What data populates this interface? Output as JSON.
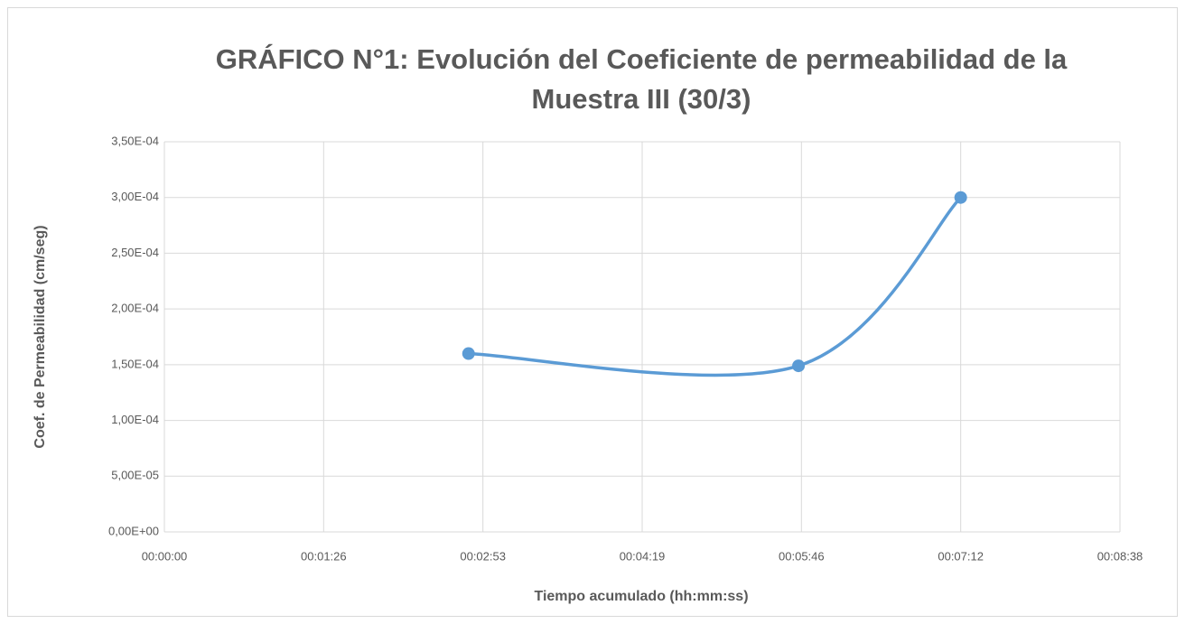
{
  "chart_data": {
    "type": "scatter",
    "title": [
      "GRÁFICO N°1: Evolución del Coeficiente de permeabilidad de la",
      "Muestra III (30/3)"
    ],
    "xlabel": "Tiempo acumulado (hh:mm:ss)",
    "ylabel": "Coef. de Permeabilidad (cm/seg)",
    "smooth": true,
    "grid": true,
    "series": [
      {
        "color": "#5b9bd5",
        "x": [
          165,
          344,
          432
        ],
        "values": [
          0.00016,
          0.000149,
          0.0003
        ]
      }
    ],
    "xlim": [
      0,
      518.4
    ],
    "xticks": [
      {
        "value": 0,
        "label": "00:00:00"
      },
      {
        "value": 86.4,
        "label": "00:01:26"
      },
      {
        "value": 172.8,
        "label": "00:02:53"
      },
      {
        "value": 259.2,
        "label": "00:04:19"
      },
      {
        "value": 345.6,
        "label": "00:05:46"
      },
      {
        "value": 432,
        "label": "00:07:12"
      },
      {
        "value": 518.4,
        "label": "00:08:38"
      }
    ],
    "ylim": [
      0,
      0.00035
    ],
    "yticks": [
      {
        "value": 0,
        "label": "0,00E+00"
      },
      {
        "value": 5e-05,
        "label": "5,00E-05"
      },
      {
        "value": 0.0001,
        "label": "1,00E-04"
      },
      {
        "value": 0.00015,
        "label": "1,50E-04"
      },
      {
        "value": 0.0002,
        "label": "2,00E-04"
      },
      {
        "value": 0.00025,
        "label": "2,50E-04"
      },
      {
        "value": 0.0003,
        "label": "3,00E-04"
      },
      {
        "value": 0.00035,
        "label": "3,50E-04"
      }
    ]
  }
}
